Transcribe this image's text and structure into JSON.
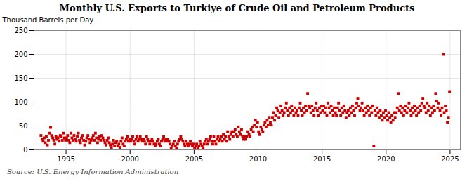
{
  "chart_data": {
    "type": "scatter",
    "title": "Monthly U.S. Exports to Turkiye of Crude Oil and Petroleum Products",
    "ylabel": "Thousand Barrels per Day",
    "source": "Source: U.S. Energy Information Administration",
    "color": "#CC0000",
    "marker": "square",
    "grid": true,
    "xlim": [
      1992.5,
      2025.8
    ],
    "ylim": [
      0,
      250
    ],
    "xticks": [
      1995,
      2000,
      2005,
      2010,
      2015,
      2020,
      2025
    ],
    "yticks": [
      0,
      50,
      100,
      150,
      200,
      250
    ],
    "x": [
      1993.0417,
      1993.125,
      1993.2083,
      1993.2917,
      1993.375,
      1993.4583,
      1993.5417,
      1993.625,
      1993.7083,
      1993.7917,
      1993.875,
      1993.9583,
      1994.0417,
      1994.125,
      1994.2083,
      1994.2917,
      1994.375,
      1994.4583,
      1994.5417,
      1994.625,
      1994.7083,
      1994.7917,
      1994.875,
      1994.9583,
      1995.0417,
      1995.125,
      1995.2083,
      1995.2917,
      1995.375,
      1995.4583,
      1995.5417,
      1995.625,
      1995.7083,
      1995.7917,
      1995.875,
      1995.9583,
      1996.0417,
      1996.125,
      1996.2083,
      1996.2917,
      1996.375,
      1996.4583,
      1996.5417,
      1996.625,
      1996.7083,
      1996.7917,
      1996.875,
      1996.9583,
      1997.0417,
      1997.125,
      1997.2083,
      1997.2917,
      1997.375,
      1997.4583,
      1997.5417,
      1997.625,
      1997.7083,
      1997.7917,
      1997.875,
      1997.9583,
      1998.0417,
      1998.125,
      1998.2083,
      1998.2917,
      1998.375,
      1998.4583,
      1998.5417,
      1998.625,
      1998.7083,
      1998.7917,
      1998.875,
      1998.9583,
      1999.0417,
      1999.125,
      1999.2083,
      1999.2917,
      1999.375,
      1999.4583,
      1999.5417,
      1999.625,
      1999.7083,
      1999.7917,
      1999.875,
      1999.9583,
      2000.0417,
      2000.125,
      2000.2083,
      2000.2917,
      2000.375,
      2000.4583,
      2000.5417,
      2000.625,
      2000.7083,
      2000.7917,
      2000.875,
      2000.9583,
      2001.0417,
      2001.125,
      2001.2083,
      2001.2917,
      2001.375,
      2001.4583,
      2001.5417,
      2001.625,
      2001.7083,
      2001.7917,
      2001.875,
      2001.9583,
      2002.0417,
      2002.125,
      2002.2083,
      2002.2917,
      2002.375,
      2002.4583,
      2002.5417,
      2002.625,
      2002.7083,
      2002.7917,
      2002.875,
      2002.9583,
      2003.0417,
      2003.125,
      2003.2083,
      2003.2917,
      2003.375,
      2003.4583,
      2003.5417,
      2003.625,
      2003.7083,
      2003.7917,
      2003.875,
      2003.9583,
      2004.0417,
      2004.125,
      2004.2083,
      2004.2917,
      2004.375,
      2004.4583,
      2004.5417,
      2004.625,
      2004.7083,
      2004.7917,
      2004.875,
      2004.9583,
      2005.0417,
      2005.125,
      2005.2083,
      2005.2917,
      2005.375,
      2005.4583,
      2005.5417,
      2005.625,
      2005.7083,
      2005.7917,
      2005.875,
      2005.9583,
      2006.0417,
      2006.125,
      2006.2083,
      2006.2917,
      2006.375,
      2006.4583,
      2006.5417,
      2006.625,
      2006.7083,
      2006.7917,
      2006.875,
      2006.9583,
      2007.0417,
      2007.125,
      2007.2083,
      2007.2917,
      2007.375,
      2007.4583,
      2007.5417,
      2007.625,
      2007.7083,
      2007.7917,
      2007.875,
      2007.9583,
      2008.0417,
      2008.125,
      2008.2083,
      2008.2917,
      2008.375,
      2008.4583,
      2008.5417,
      2008.625,
      2008.7083,
      2008.7917,
      2008.875,
      2008.9583,
      2009.0417,
      2009.125,
      2009.2083,
      2009.2917,
      2009.375,
      2009.4583,
      2009.5417,
      2009.625,
      2009.7083,
      2009.7917,
      2009.875,
      2009.9583,
      2010.0417,
      2010.125,
      2010.2083,
      2010.2917,
      2010.375,
      2010.4583,
      2010.5417,
      2010.625,
      2010.7083,
      2010.7917,
      2010.875,
      2010.9583,
      2011.0417,
      2011.125,
      2011.2083,
      2011.2917,
      2011.375,
      2011.4583,
      2011.5417,
      2011.625,
      2011.7083,
      2011.7917,
      2011.875,
      2011.9583,
      2012.0417,
      2012.125,
      2012.2083,
      2012.2917,
      2012.375,
      2012.4583,
      2012.5417,
      2012.625,
      2012.7083,
      2012.7917,
      2012.875,
      2012.9583,
      2013.0417,
      2013.125,
      2013.2083,
      2013.2917,
      2013.375,
      2013.4583,
      2013.5417,
      2013.625,
      2013.7083,
      2013.7917,
      2013.875,
      2013.9583,
      2014.0417,
      2014.125,
      2014.2083,
      2014.2917,
      2014.375,
      2014.4583,
      2014.5417,
      2014.625,
      2014.7083,
      2014.7917,
      2014.875,
      2014.9583,
      2015.0417,
      2015.125,
      2015.2083,
      2015.2917,
      2015.375,
      2015.4583,
      2015.5417,
      2015.625,
      2015.7083,
      2015.7917,
      2015.875,
      2015.9583,
      2016.0417,
      2016.125,
      2016.2083,
      2016.2917,
      2016.375,
      2016.4583,
      2016.5417,
      2016.625,
      2016.7083,
      2016.7917,
      2016.875,
      2016.9583,
      2017.0417,
      2017.125,
      2017.2083,
      2017.2917,
      2017.375,
      2017.4583,
      2017.5417,
      2017.625,
      2017.7083,
      2017.7917,
      2017.875,
      2017.9583,
      2018.0417,
      2018.125,
      2018.2083,
      2018.2917,
      2018.375,
      2018.4583,
      2018.5417,
      2018.625,
      2018.7083,
      2018.7917,
      2018.875,
      2018.9583,
      2019.0417,
      2019.125,
      2019.2083,
      2019.2917,
      2019.375,
      2019.4583,
      2019.5417,
      2019.625,
      2019.7083,
      2019.7917,
      2019.875,
      2019.9583,
      2020.0417,
      2020.125,
      2020.2083,
      2020.2917,
      2020.375,
      2020.4583,
      2020.5417,
      2020.625,
      2020.7083,
      2020.7917,
      2020.875,
      2020.9583,
      2021.0417,
      2021.125,
      2021.2083,
      2021.2917,
      2021.375,
      2021.4583,
      2021.5417,
      2021.625,
      2021.7083,
      2021.7917,
      2021.875,
      2021.9583,
      2022.0417,
      2022.125,
      2022.2083,
      2022.2917,
      2022.375,
      2022.4583,
      2022.5417,
      2022.625,
      2022.7083,
      2022.7917,
      2022.875,
      2022.9583,
      2023.0417,
      2023.125,
      2023.2083,
      2023.2917,
      2023.375,
      2023.4583,
      2023.5417,
      2023.625,
      2023.7083,
      2023.7917,
      2023.875,
      2023.9583,
      2024.0417,
      2024.125,
      2024.2083,
      2024.2917,
      2024.375,
      2024.4583,
      2024.5417,
      2024.625,
      2024.7083,
      2024.7917,
      2024.875,
      2024.9583
    ],
    "values": [
      30,
      22,
      18,
      25,
      15,
      28,
      10,
      20,
      35,
      47,
      30,
      25,
      20,
      12,
      28,
      22,
      25,
      18,
      30,
      28,
      20,
      35,
      25,
      20,
      25,
      30,
      20,
      15,
      35,
      25,
      20,
      30,
      22,
      18,
      28,
      35,
      20,
      15,
      25,
      30,
      20,
      10,
      18,
      25,
      30,
      22,
      15,
      20,
      25,
      30,
      20,
      35,
      25,
      15,
      22,
      28,
      20,
      30,
      25,
      20,
      15,
      10,
      20,
      25,
      15,
      10,
      5,
      12,
      20,
      8,
      15,
      18,
      8,
      12,
      5,
      18,
      25,
      12,
      8,
      18,
      22,
      28,
      18,
      22,
      18,
      22,
      28,
      18,
      12,
      22,
      28,
      18,
      22,
      28,
      22,
      18,
      22,
      18,
      12,
      28,
      22,
      18,
      12,
      18,
      22,
      18,
      12,
      8,
      12,
      18,
      22,
      12,
      8,
      18,
      22,
      28,
      18,
      22,
      18,
      22,
      18,
      12,
      3,
      8,
      12,
      18,
      8,
      3,
      12,
      18,
      22,
      28,
      22,
      18,
      12,
      8,
      18,
      12,
      8,
      12,
      18,
      12,
      8,
      12,
      3,
      8,
      12,
      3,
      8,
      18,
      12,
      8,
      3,
      12,
      18,
      22,
      12,
      18,
      22,
      28,
      18,
      12,
      28,
      18,
      12,
      22,
      28,
      18,
      22,
      28,
      18,
      32,
      22,
      28,
      18,
      38,
      28,
      22,
      32,
      38,
      28,
      38,
      42,
      32,
      28,
      48,
      38,
      32,
      42,
      28,
      22,
      28,
      22,
      28,
      38,
      32,
      28,
      42,
      48,
      38,
      52,
      62,
      48,
      58,
      38,
      32,
      48,
      42,
      38,
      52,
      58,
      48,
      62,
      52,
      68,
      58,
      52,
      68,
      78,
      62,
      72,
      88,
      82,
      68,
      78,
      92,
      82,
      72,
      78,
      88,
      98,
      82,
      72,
      88,
      78,
      92,
      82,
      72,
      88,
      78,
      82,
      72,
      88,
      98,
      82,
      72,
      88,
      78,
      92,
      82,
      118,
      92,
      88,
      78,
      92,
      82,
      72,
      88,
      98,
      82,
      72,
      88,
      78,
      92,
      82,
      92,
      78,
      88,
      72,
      98,
      88,
      78,
      92,
      82,
      72,
      88,
      78,
      72,
      88,
      98,
      82,
      72,
      88,
      78,
      92,
      82,
      68,
      78,
      82,
      72,
      88,
      78,
      92,
      82,
      72,
      88,
      98,
      108,
      92,
      82,
      88,
      98,
      82,
      72,
      88,
      78,
      92,
      82,
      72,
      88,
      78,
      92,
      8,
      82,
      72,
      88,
      78,
      68,
      82,
      72,
      62,
      78,
      68,
      82,
      72,
      62,
      78,
      68,
      58,
      72,
      62,
      78,
      68,
      78,
      88,
      118,
      82,
      92,
      78,
      88,
      72,
      82,
      92,
      78,
      88,
      98,
      82,
      72,
      88,
      78,
      92,
      82,
      72,
      88,
      78,
      92,
      82,
      98,
      108,
      92,
      88,
      78,
      98,
      82,
      92,
      72,
      88,
      78,
      92,
      82,
      118,
      102,
      88,
      98,
      82,
      72,
      88,
      200,
      78,
      92,
      82,
      58,
      68,
      122
    ]
  }
}
